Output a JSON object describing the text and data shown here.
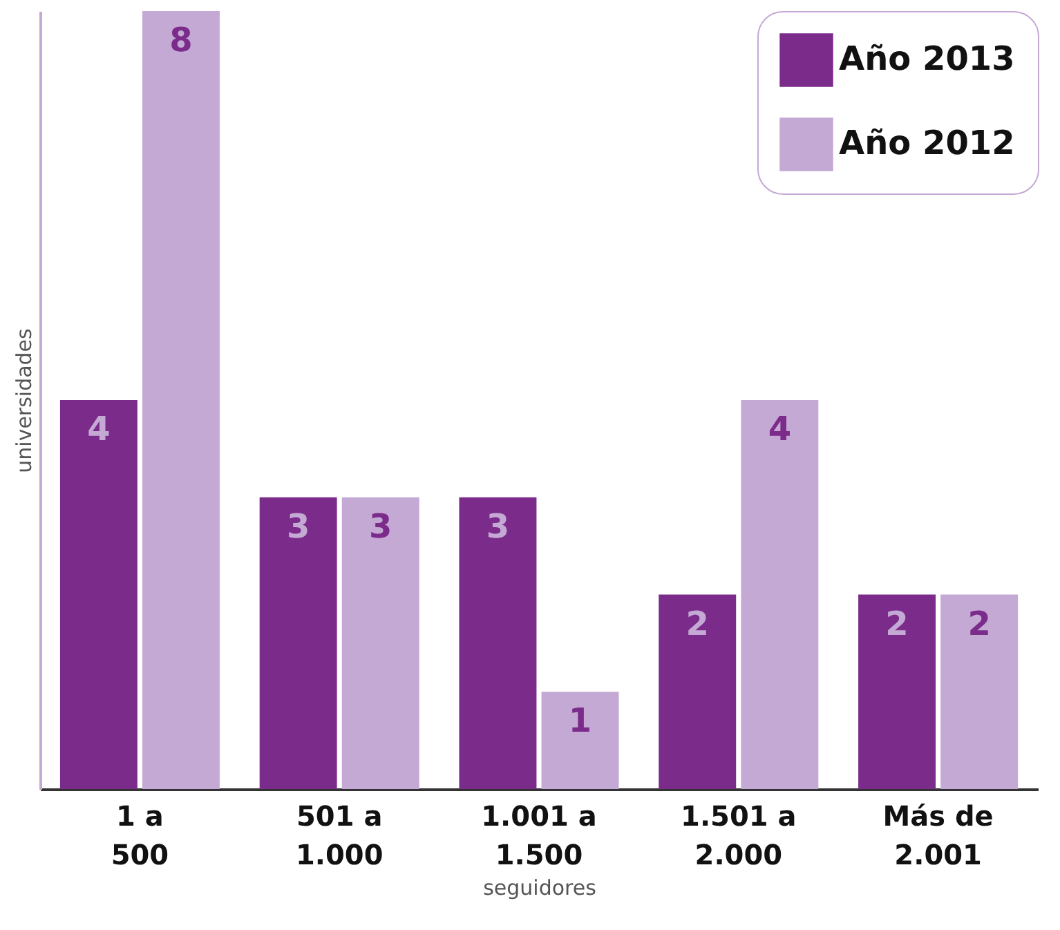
{
  "chart_data": {
    "type": "bar",
    "xlabel": "seguidores",
    "ylabel": "universidades",
    "categories": [
      "1 a 500",
      "501 a 1.000",
      "1.001 a 1.500",
      "1.501 a 2.000",
      "Más de 2.001"
    ],
    "series": [
      {
        "name": "Año 2013",
        "color": "#7b2b8a",
        "values": [
          4,
          3,
          3,
          2,
          2
        ]
      },
      {
        "name": "Año 2012",
        "color": "#c5a9d5",
        "values": [
          8,
          3,
          1,
          4,
          2
        ]
      }
    ],
    "data_labels": true,
    "legend": "top right",
    "grid": false
  }
}
